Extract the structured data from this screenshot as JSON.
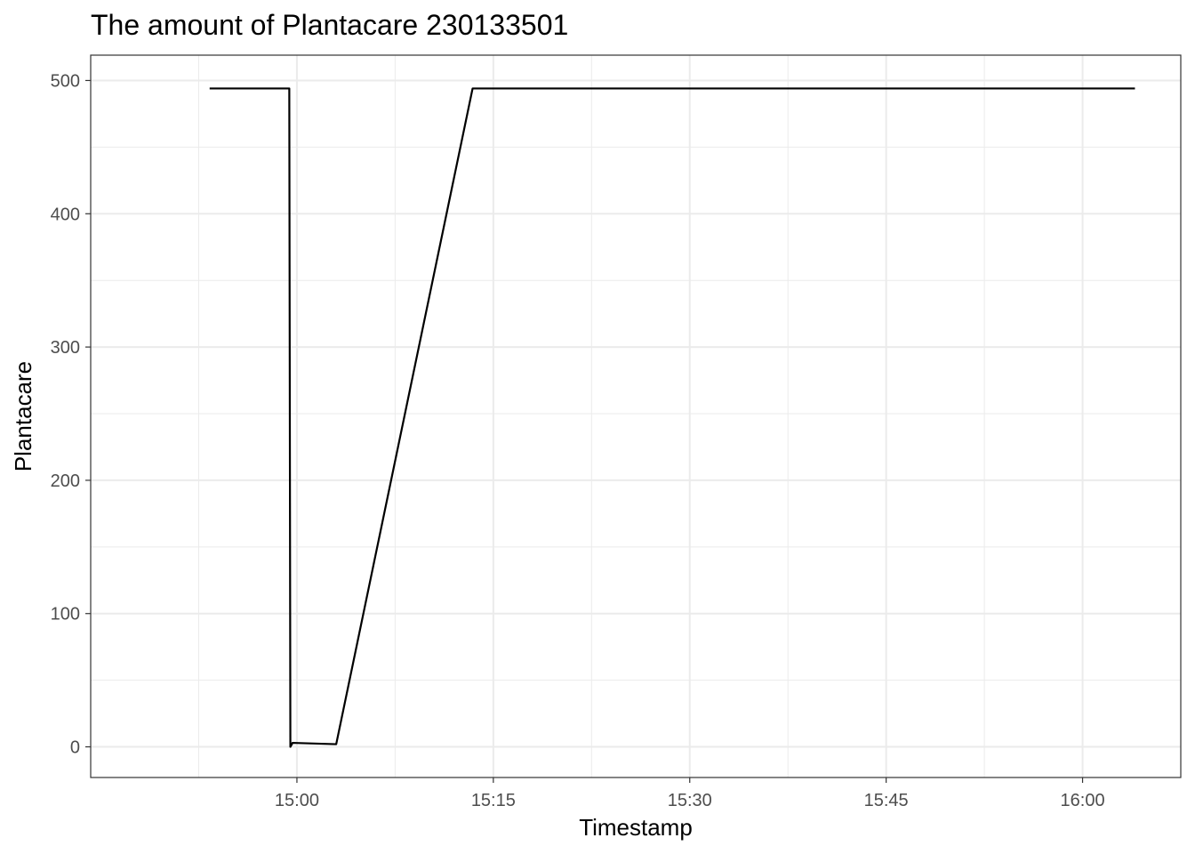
{
  "chart_data": {
    "type": "line",
    "title": "The amount of Plantacare 230133501",
    "xlabel": "Timestamp",
    "ylabel": "Plantacare",
    "x_axis_kind": "time",
    "xlim": [
      "14:44:15",
      "16:07:30"
    ],
    "ylim": [
      -23,
      519
    ],
    "x_ticks": [
      "15:00",
      "15:15",
      "15:30",
      "15:45",
      "16:00"
    ],
    "y_ticks": [
      0,
      100,
      200,
      300,
      400,
      500
    ],
    "grid": true,
    "legend": "none",
    "series": [
      {
        "points": [
          {
            "x": "14:53:20",
            "y": 494
          },
          {
            "x": "14:59:25",
            "y": 494
          },
          {
            "x": "14:59:30",
            "y": 0
          },
          {
            "x": "14:59:40",
            "y": 3
          },
          {
            "x": "15:03:00",
            "y": 2
          },
          {
            "x": "15:13:25",
            "y": 494
          },
          {
            "x": "16:04:00",
            "y": 494
          }
        ]
      }
    ]
  }
}
